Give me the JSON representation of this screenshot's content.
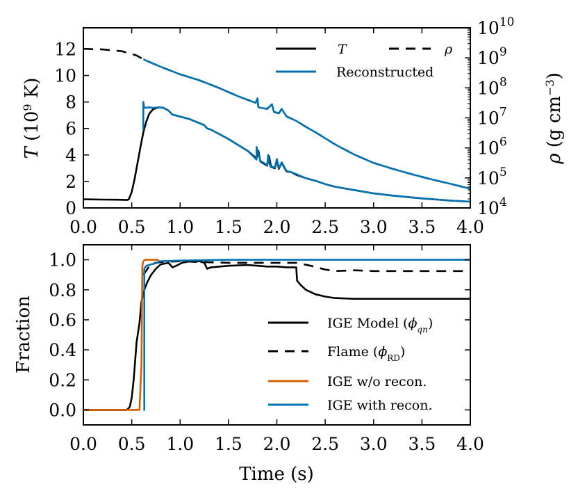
{
  "chart_data": [
    {
      "type": "line",
      "xlim": [
        0,
        4
      ],
      "x_ticks": [
        "0.0",
        "0.5",
        "1.0",
        "1.5",
        "2.0",
        "2.5",
        "3.0",
        "3.5",
        "4.0"
      ],
      "ylabel": "T (10⁹ K)",
      "ylabel_main": "T",
      "ylabel_unit": "(10⁹ K)",
      "ylim": [
        0,
        13.6
      ],
      "y_ticks": [
        "0",
        "2",
        "4",
        "6",
        "8",
        "10",
        "12"
      ],
      "y2label": "ρ (g cm⁻³)",
      "y2label_main": "ρ (g cm",
      "y2label_sup": "−3",
      "y2label_end": ")",
      "y2_scale": "log",
      "y2lim_exp": [
        4,
        10
      ],
      "y2_ticks": [
        {
          "base": "10",
          "exp": "4"
        },
        {
          "base": "10",
          "exp": "5"
        },
        {
          "base": "10",
          "exp": "6"
        },
        {
          "base": "10",
          "exp": "7"
        },
        {
          "base": "10",
          "exp": "8"
        },
        {
          "base": "10",
          "exp": "9"
        },
        {
          "base": "10",
          "exp": "10"
        }
      ],
      "legend": [
        {
          "label": "T",
          "style": "solid",
          "color": "#000000"
        },
        {
          "label": "ρ",
          "style": "dashed",
          "color": "#000000"
        },
        {
          "label": "Reconstructed",
          "style": "solid",
          "color": "#0072b2"
        }
      ],
      "series": [
        {
          "name": "T",
          "axis": "left",
          "style": "solid",
          "color": "#000000",
          "points": [
            [
              0,
              0.65
            ],
            [
              0.2,
              0.63
            ],
            [
              0.35,
              0.62
            ],
            [
              0.45,
              0.6
            ],
            [
              0.47,
              0.65
            ],
            [
              0.5,
              1.2
            ],
            [
              0.53,
              2.2
            ],
            [
              0.56,
              3.4
            ],
            [
              0.59,
              4.6
            ],
            [
              0.62,
              5.7
            ],
            [
              0.65,
              6.5
            ],
            [
              0.68,
              7.1
            ],
            [
              0.72,
              7.45
            ],
            [
              0.78,
              7.6
            ],
            [
              0.83,
              7.55
            ],
            [
              0.88,
              7.35
            ],
            [
              0.92,
              7.05
            ],
            [
              1.0,
              6.9
            ],
            [
              1.1,
              6.7
            ],
            [
              1.2,
              6.4
            ],
            [
              1.25,
              6.25
            ],
            [
              1.28,
              6.0
            ],
            [
              1.32,
              5.9
            ],
            [
              1.4,
              5.6
            ],
            [
              1.5,
              5.2
            ],
            [
              1.6,
              4.75
            ],
            [
              1.7,
              4.3
            ],
            [
              1.79,
              3.75
            ],
            [
              1.81,
              4.3
            ],
            [
              1.83,
              3.5
            ],
            [
              1.9,
              3.2
            ],
            [
              1.92,
              3.9
            ],
            [
              1.94,
              3.1
            ],
            [
              1.98,
              3.0
            ],
            [
              2.0,
              3.6
            ],
            [
              2.02,
              2.95
            ],
            [
              2.05,
              3.4
            ],
            [
              2.1,
              2.75
            ],
            [
              2.15,
              2.7
            ],
            [
              2.2,
              2.5
            ],
            [
              2.3,
              2.25
            ],
            [
              2.4,
              2.05
            ],
            [
              2.5,
              1.8
            ],
            [
              2.6,
              1.6
            ],
            [
              2.8,
              1.35
            ],
            [
              3.0,
              1.1
            ],
            [
              3.2,
              0.93
            ],
            [
              3.5,
              0.72
            ],
            [
              3.8,
              0.55
            ],
            [
              4.0,
              0.47
            ]
          ]
        },
        {
          "name": "T reconstructed",
          "axis": "left",
          "style": "solid",
          "color": "#0072b2",
          "points": [
            [
              0.62,
              5.9
            ],
            [
              0.62,
              8.0
            ],
            [
              0.63,
              7.55
            ],
            [
              0.68,
              7.6
            ],
            [
              0.72,
              7.55
            ],
            [
              0.78,
              7.6
            ],
            [
              0.83,
              7.55
            ],
            [
              0.88,
              7.35
            ],
            [
              0.92,
              7.05
            ],
            [
              1.0,
              6.9
            ],
            [
              1.1,
              6.7
            ],
            [
              1.2,
              6.4
            ],
            [
              1.25,
              6.25
            ],
            [
              1.28,
              6.0
            ],
            [
              1.32,
              5.9
            ],
            [
              1.4,
              5.6
            ],
            [
              1.5,
              5.2
            ],
            [
              1.6,
              4.75
            ],
            [
              1.7,
              4.3
            ],
            [
              1.79,
              3.65
            ],
            [
              1.79,
              4.6
            ],
            [
              1.83,
              3.55
            ],
            [
              1.9,
              3.25
            ],
            [
              1.91,
              4.0
            ],
            [
              1.93,
              3.15
            ],
            [
              1.98,
              3.05
            ],
            [
              2.0,
              3.7
            ],
            [
              2.02,
              3.0
            ],
            [
              2.05,
              3.45
            ],
            [
              2.1,
              2.8
            ],
            [
              2.15,
              2.7
            ],
            [
              2.2,
              2.55
            ],
            [
              2.3,
              2.25
            ],
            [
              2.4,
              2.05
            ],
            [
              2.5,
              1.8
            ],
            [
              2.6,
              1.6
            ],
            [
              2.8,
              1.35
            ],
            [
              3.0,
              1.1
            ],
            [
              3.2,
              0.93
            ],
            [
              3.5,
              0.72
            ],
            [
              3.8,
              0.55
            ],
            [
              4.0,
              0.47
            ]
          ]
        },
        {
          "name": "ρ",
          "axis": "right",
          "style": "dashed",
          "color": "#000000",
          "log10_points": [
            [
              0,
              9.3
            ],
            [
              0.2,
              9.28
            ],
            [
              0.4,
              9.22
            ],
            [
              0.55,
              9.08
            ],
            [
              0.62,
              8.95
            ],
            [
              0.8,
              8.7
            ],
            [
              1.0,
              8.45
            ],
            [
              1.2,
              8.25
            ],
            [
              1.4,
              8.0
            ],
            [
              1.6,
              7.72
            ],
            [
              1.78,
              7.5
            ],
            [
              1.8,
              7.6
            ],
            [
              1.81,
              7.35
            ],
            [
              1.9,
              7.3
            ],
            [
              1.95,
              7.45
            ],
            [
              1.97,
              7.2
            ],
            [
              2.02,
              7.15
            ],
            [
              2.05,
              7.3
            ],
            [
              2.1,
              7.05
            ],
            [
              2.2,
              6.9
            ],
            [
              2.3,
              6.7
            ],
            [
              2.4,
              6.52
            ],
            [
              2.5,
              6.32
            ],
            [
              2.6,
              6.12
            ],
            [
              2.8,
              5.78
            ],
            [
              3.0,
              5.5
            ],
            [
              3.2,
              5.3
            ],
            [
              3.4,
              5.12
            ],
            [
              3.6,
              4.95
            ],
            [
              3.8,
              4.8
            ],
            [
              4.0,
              4.64
            ]
          ]
        },
        {
          "name": "ρ reconstructed",
          "axis": "right",
          "style": "solid",
          "color": "#0072b2",
          "log10_points": [
            [
              0.62,
              8.95
            ],
            [
              0.8,
              8.7
            ],
            [
              1.0,
              8.45
            ],
            [
              1.2,
              8.25
            ],
            [
              1.4,
              8.0
            ],
            [
              1.6,
              7.72
            ],
            [
              1.78,
              7.5
            ],
            [
              1.8,
              7.65
            ],
            [
              1.81,
              7.35
            ],
            [
              1.9,
              7.3
            ],
            [
              1.95,
              7.45
            ],
            [
              1.97,
              7.2
            ],
            [
              2.02,
              7.15
            ],
            [
              2.05,
              7.3
            ],
            [
              2.1,
              7.05
            ],
            [
              2.2,
              6.9
            ],
            [
              2.3,
              6.7
            ],
            [
              2.4,
              6.52
            ],
            [
              2.5,
              6.32
            ],
            [
              2.6,
              6.12
            ],
            [
              2.8,
              5.78
            ],
            [
              3.0,
              5.5
            ],
            [
              3.2,
              5.3
            ],
            [
              3.4,
              5.12
            ],
            [
              3.6,
              4.95
            ],
            [
              3.8,
              4.8
            ],
            [
              4.0,
              4.64
            ]
          ]
        }
      ]
    },
    {
      "type": "line",
      "xlim": [
        0,
        4
      ],
      "x_ticks": [
        "0.0",
        "0.5",
        "1.0",
        "1.5",
        "2.0",
        "2.5",
        "3.0",
        "3.5",
        "4.0"
      ],
      "xlabel": "Time (s)",
      "ylabel": "Fraction",
      "ylim": [
        -0.1,
        1.1
      ],
      "y_ticks": [
        "0.0",
        "0.2",
        "0.4",
        "0.6",
        "0.8",
        "1.0"
      ],
      "legend": [
        {
          "label": "IGE Model",
          "sym": "ϕ",
          "sub": "qn",
          "style": "solid",
          "color": "#000000"
        },
        {
          "label": "Flame",
          "sym": "ϕ",
          "sub": "RD",
          "style": "dashed",
          "color": "#000000"
        },
        {
          "label": "IGE w/o recon.",
          "style": "solid",
          "color": "#d55e00"
        },
        {
          "label": "IGE with recon.",
          "style": "solid",
          "color": "#0072b2"
        }
      ],
      "series": [
        {
          "name": "IGE Model (ϕqn)",
          "style": "solid",
          "color": "#000000",
          "points": [
            [
              0,
              0
            ],
            [
              0.45,
              0
            ],
            [
              0.48,
              0.02
            ],
            [
              0.5,
              0.08
            ],
            [
              0.52,
              0.2
            ],
            [
              0.55,
              0.45
            ],
            [
              0.58,
              0.58
            ],
            [
              0.6,
              0.72
            ],
            [
              0.63,
              0.8
            ],
            [
              0.66,
              0.85
            ],
            [
              0.7,
              0.9
            ],
            [
              0.75,
              0.94
            ],
            [
              0.8,
              0.97
            ],
            [
              0.88,
              0.98
            ],
            [
              0.92,
              0.95
            ],
            [
              0.96,
              0.96
            ],
            [
              1.02,
              0.98
            ],
            [
              1.1,
              0.99
            ],
            [
              1.2,
              0.99
            ],
            [
              1.25,
              0.98
            ],
            [
              1.28,
              0.94
            ],
            [
              1.32,
              0.95
            ],
            [
              1.5,
              0.96
            ],
            [
              1.7,
              0.965
            ],
            [
              1.9,
              0.955
            ],
            [
              2.0,
              0.955
            ],
            [
              2.1,
              0.95
            ],
            [
              2.2,
              0.95
            ],
            [
              2.21,
              0.86
            ],
            [
              2.25,
              0.83
            ],
            [
              2.3,
              0.8
            ],
            [
              2.4,
              0.77
            ],
            [
              2.5,
              0.755
            ],
            [
              2.6,
              0.745
            ],
            [
              2.8,
              0.74
            ],
            [
              3.0,
              0.74
            ],
            [
              3.5,
              0.74
            ],
            [
              4.0,
              0.74
            ]
          ]
        },
        {
          "name": "Flame (ϕRD)",
          "style": "dashed",
          "color": "#000000",
          "points": [
            [
              0.62,
              0.9
            ],
            [
              0.7,
              0.975
            ],
            [
              0.8,
              0.985
            ],
            [
              1.0,
              0.99
            ],
            [
              1.2,
              0.985
            ],
            [
              1.5,
              0.98
            ],
            [
              2.0,
              0.98
            ],
            [
              2.2,
              0.98
            ],
            [
              2.35,
              0.96
            ],
            [
              2.5,
              0.935
            ],
            [
              2.6,
              0.925
            ],
            [
              2.8,
              0.93
            ],
            [
              3.0,
              0.925
            ],
            [
              3.5,
              0.925
            ],
            [
              4.0,
              0.925
            ]
          ]
        },
        {
          "name": "IGE w/o recon.",
          "style": "solid",
          "color": "#d55e00",
          "points": [
            [
              0,
              0
            ],
            [
              0.58,
              0
            ],
            [
              0.6,
              0.3
            ],
            [
              0.61,
              0.96
            ],
            [
              0.62,
              0.99
            ],
            [
              0.64,
              1.0
            ],
            [
              0.7,
              1.0
            ],
            [
              0.78,
              1.0
            ]
          ]
        },
        {
          "name": "IGE with recon.",
          "style": "solid",
          "color": "#0072b2",
          "points": [
            [
              0.63,
              -0.005
            ],
            [
              0.63,
              0.94
            ],
            [
              0.65,
              0.96
            ],
            [
              0.7,
              0.97
            ],
            [
              0.77,
              0.98
            ],
            [
              0.78,
              0.99
            ],
            [
              1.0,
              0.995
            ],
            [
              1.5,
              1.0
            ],
            [
              2.0,
              1.0
            ],
            [
              3.0,
              1.0
            ],
            [
              4.0,
              1.0
            ]
          ]
        }
      ]
    }
  ]
}
